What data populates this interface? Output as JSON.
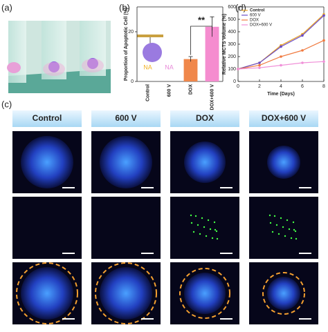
{
  "figure": {
    "panel_labels": [
      "(a)",
      "(b)",
      "(c)",
      "(d)"
    ],
    "columns": [
      "Control",
      "600 V",
      "DOX",
      "DOX+600 V"
    ]
  },
  "chart_data": [
    {
      "type": "bar",
      "ylabel": "Proportion of Apoptotic Cell (%)",
      "categories": [
        "Control",
        "600 V",
        "DOX",
        "DOX+600 V"
      ],
      "values": [
        null,
        null,
        9,
        22
      ],
      "value_labels": [
        "NA",
        "NA",
        null,
        null
      ],
      "errors": [
        null,
        null,
        1,
        4
      ],
      "colors": [
        "#f2b224",
        "#e88ad8",
        "#f0874a",
        "#f58ccf"
      ],
      "ylim": [
        0,
        30
      ],
      "yticks": [
        0,
        20
      ],
      "annotation": "**"
    },
    {
      "type": "line",
      "xlabel": "Time (Days)",
      "ylabel": "Relative MCTS Volume (%)",
      "x": [
        0,
        2,
        4,
        6,
        8
      ],
      "series": [
        {
          "name": "Control",
          "color": "#e8a020",
          "values": [
            100,
            150,
            290,
            380,
            540
          ]
        },
        {
          "name": "600 V",
          "color": "#6a4cc8",
          "values": [
            100,
            150,
            280,
            370,
            530
          ]
        },
        {
          "name": "DOX",
          "color": "#f07a40",
          "values": [
            100,
            130,
            200,
            250,
            330
          ]
        },
        {
          "name": "DOX+600 V",
          "color": "#f090d8",
          "values": [
            100,
            110,
            130,
            150,
            160
          ]
        }
      ],
      "xlim": [
        0,
        8
      ],
      "xticks": [
        0,
        2,
        4,
        6,
        8
      ],
      "ylim": [
        0,
        600
      ],
      "yticks": [
        0,
        100,
        200,
        300,
        400,
        500,
        600
      ]
    }
  ]
}
